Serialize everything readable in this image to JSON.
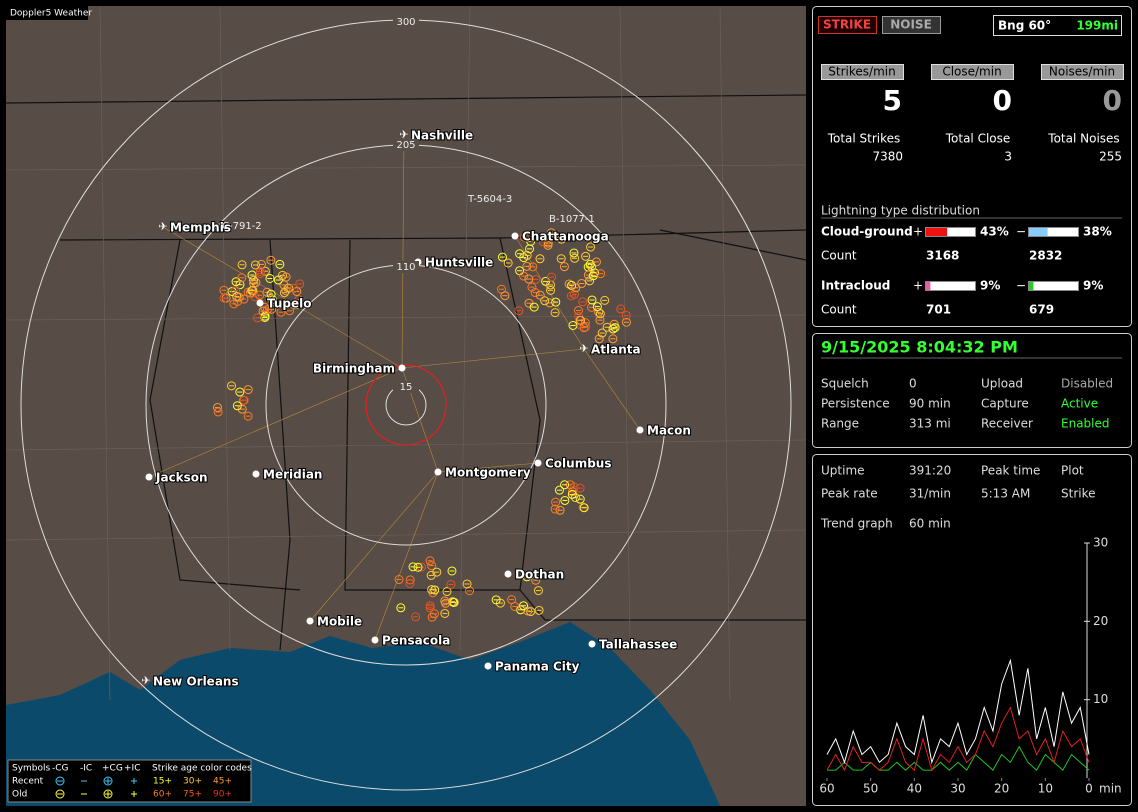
{
  "map": {
    "brand": "Doppler5 Weather",
    "range_rings": [
      300,
      205,
      110,
      15
    ],
    "cities": [
      "Nashville",
      "Memphis",
      "Huntsville",
      "Chattanooga",
      "Tupelo",
      "Birmingham",
      "Atlanta",
      "Macon",
      "Jackson",
      "Meridian",
      "Montgomery",
      "Columbus",
      "Dothan",
      "Mobile",
      "Pensacola",
      "Tallahassee",
      "Panama City",
      "New Orleans"
    ],
    "tracks": [
      "C-791-2",
      "T-5604-3",
      "B-1077-1"
    ],
    "legend": {
      "header": [
        "Symbols",
        "-CG",
        "-IC",
        "+CG",
        "+IC",
        "Strike age color codes"
      ],
      "recent": {
        "label": "Recent",
        "ages": [
          "15+",
          "30+",
          "45+"
        ]
      },
      "old": {
        "label": "Old",
        "ages": [
          "60+",
          "75+",
          "90+"
        ]
      }
    }
  },
  "status": {
    "strike_button": "STRIKE",
    "noise_button": "NOISE",
    "bearing": "Bng 60°",
    "distance": "199mi",
    "rates": [
      {
        "label": "Strikes/min",
        "value": 5
      },
      {
        "label": "Close/min",
        "value": 0
      },
      {
        "label": "Noises/min",
        "value": 0
      }
    ],
    "totals": [
      {
        "label": "Total Strikes",
        "value": 7380
      },
      {
        "label": "Total Close",
        "value": 3
      },
      {
        "label": "Total Noises",
        "value": 255
      }
    ],
    "distribution": {
      "title": "Lightning type distribution",
      "count_label": "Count",
      "rows": [
        {
          "label": "Cloud-ground",
          "plus": {
            "sign": "+",
            "percent": {
              "value": 43,
              "label": "43%"
            },
            "count": 3168
          },
          "minus": {
            "sign": "−",
            "percent": {
              "value": 38,
              "label": "38%"
            },
            "count": 2832
          }
        },
        {
          "label": "Intracloud",
          "plus": {
            "sign": "+",
            "percent": {
              "value": 9,
              "label": "9%"
            },
            "count": 701
          },
          "minus": {
            "sign": "−",
            "percent": {
              "value": 9,
              "label": "9%"
            },
            "count": 679
          }
        }
      ]
    }
  },
  "settings": {
    "datetime": "9/15/2025 8:04:32 PM",
    "rows": [
      [
        "Squelch",
        "0",
        "Upload",
        "Disabled"
      ],
      [
        "Persistence",
        "90 min",
        "Capture",
        "Active"
      ],
      [
        "Range",
        "313 mi",
        "Receiver",
        "Enabled"
      ]
    ]
  },
  "stats": {
    "rows": [
      [
        "Uptime",
        "391:20",
        "Peak time",
        "Plot"
      ],
      [
        "Peak rate",
        "31/min",
        "5:13 AM",
        "Strike"
      ]
    ],
    "trend_label": "Trend graph",
    "trend_value": "60 min"
  },
  "chart_data": {
    "type": "line",
    "x": [
      60,
      58,
      56,
      54,
      52,
      50,
      48,
      46,
      44,
      42,
      40,
      38,
      36,
      34,
      32,
      30,
      28,
      26,
      24,
      22,
      20,
      18,
      16,
      14,
      12,
      10,
      8,
      6,
      4,
      2,
      0
    ],
    "xlim": [
      60,
      0
    ],
    "xticks": [
      60,
      50,
      40,
      30,
      20,
      10,
      0
    ],
    "x_unit": "min",
    "ylim": [
      0,
      30
    ],
    "yticks": [
      10,
      20,
      30
    ],
    "series": [
      {
        "color": "#ffffff",
        "values": [
          3,
          5,
          2,
          6,
          3,
          4,
          2,
          3,
          7,
          4,
          3,
          8,
          2,
          5,
          4,
          7,
          3,
          5,
          9,
          6,
          12,
          15,
          8,
          14,
          5,
          9,
          4,
          11,
          7,
          9,
          3
        ]
      },
      {
        "color": "#e02020",
        "values": [
          1,
          3,
          1,
          4,
          2,
          2,
          1,
          2,
          5,
          2,
          1,
          5,
          1,
          3,
          2,
          4,
          2,
          3,
          6,
          4,
          7,
          9,
          5,
          6,
          3,
          5,
          2,
          6,
          4,
          5,
          2
        ]
      },
      {
        "color": "#20c020",
        "values": [
          1,
          1,
          2,
          1,
          1,
          2,
          1,
          1,
          2,
          1,
          2,
          1,
          1,
          2,
          1,
          2,
          1,
          3,
          2,
          1,
          3,
          2,
          4,
          2,
          1,
          3,
          2,
          1,
          3,
          2,
          1
        ]
      }
    ]
  }
}
